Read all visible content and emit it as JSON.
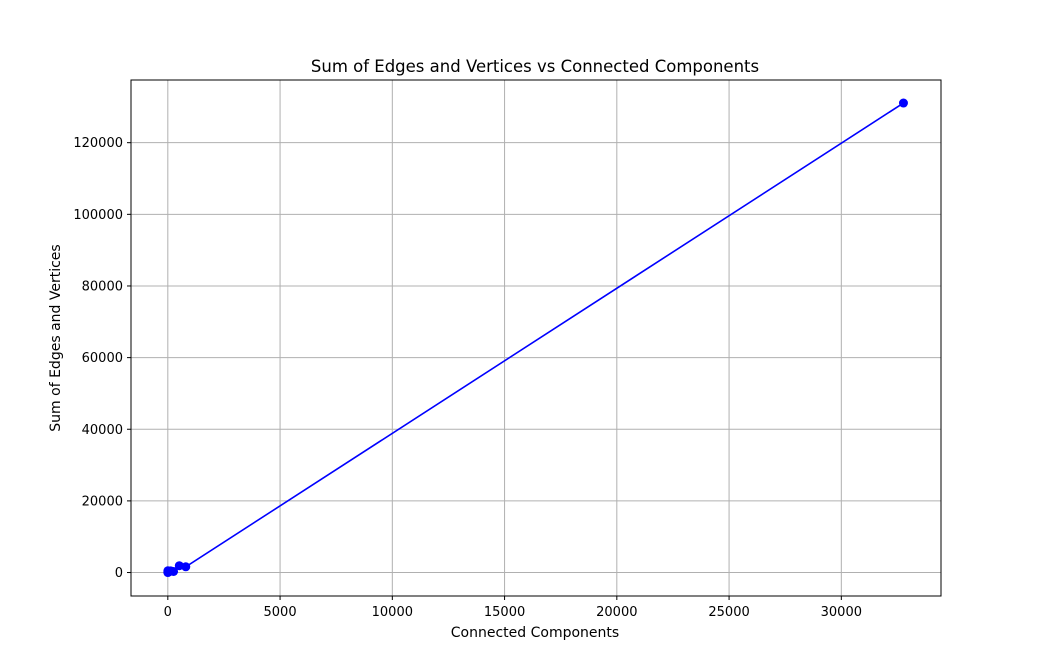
{
  "chart_data": {
    "type": "line",
    "title": "Sum of Edges and Vertices vs Connected Components",
    "xlabel": "Connected Components",
    "ylabel": "Sum of Edges and Vertices",
    "xlim": [
      -1640,
      34440
    ],
    "ylim": [
      -6550,
      137500
    ],
    "xticks": [
      0,
      5000,
      10000,
      15000,
      20000,
      25000,
      30000
    ],
    "yticks": [
      0,
      20000,
      40000,
      60000,
      80000,
      100000,
      120000
    ],
    "grid": true,
    "series": [
      {
        "color": "#0000ff",
        "marker": "circle",
        "points": [
          {
            "x": 1,
            "y": 0
          },
          {
            "x": 2,
            "y": 200
          },
          {
            "x": 4,
            "y": 500
          },
          {
            "x": 8,
            "y": 150
          },
          {
            "x": 16,
            "y": 300
          },
          {
            "x": 32,
            "y": 400
          },
          {
            "x": 64,
            "y": 250
          },
          {
            "x": 128,
            "y": 450
          },
          {
            "x": 256,
            "y": 300
          },
          {
            "x": 512,
            "y": 1900
          },
          {
            "x": 800,
            "y": 1600
          },
          {
            "x": 32768,
            "y": 131072
          }
        ]
      }
    ]
  }
}
